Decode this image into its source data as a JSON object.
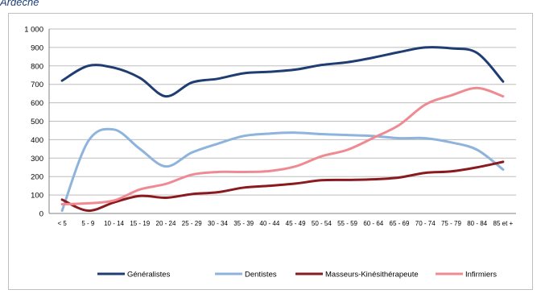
{
  "page": {
    "heading": "Ardèche"
  },
  "chart_data": {
    "type": "line",
    "title": "",
    "xlabel": "",
    "ylabel": "",
    "ylim": [
      0,
      1000
    ],
    "yticks": [
      "0",
      "100",
      "200",
      "300",
      "400",
      "500",
      "600",
      "700",
      "800",
      "900",
      "1 000"
    ],
    "grid": true,
    "legend_position": "bottom",
    "categories": [
      "< 5",
      "5 - 9",
      "10 - 14",
      "15 - 19",
      "20 - 24",
      "25 - 29",
      "30 - 34",
      "35 - 39",
      "40 - 44",
      "45 - 49",
      "50 - 54",
      "55 - 59",
      "60 - 64",
      "65 - 69",
      "70 - 74",
      "75 - 79",
      "80 - 84",
      "85 et +"
    ],
    "series": [
      {
        "name": "Généralistes",
        "color": "#1f3d73",
        "values": [
          720,
          800,
          790,
          735,
          635,
          710,
          730,
          760,
          768,
          780,
          805,
          820,
          845,
          875,
          900,
          895,
          870,
          715
        ]
      },
      {
        "name": "Dentistes",
        "color": "#8eb3dc",
        "values": [
          15,
          390,
          455,
          350,
          255,
          330,
          378,
          420,
          433,
          438,
          430,
          425,
          420,
          408,
          408,
          385,
          345,
          238
        ]
      },
      {
        "name": "Masseurs-Kinésithérapeute",
        "color": "#8b1a1f",
        "values": [
          75,
          15,
          60,
          95,
          85,
          105,
          115,
          140,
          150,
          162,
          180,
          182,
          185,
          195,
          220,
          228,
          250,
          280
        ]
      },
      {
        "name": "Infirmiers",
        "color": "#ef8a93",
        "values": [
          50,
          55,
          70,
          130,
          160,
          210,
          225,
          225,
          230,
          255,
          310,
          345,
          410,
          480,
          590,
          640,
          680,
          635
        ]
      }
    ]
  }
}
